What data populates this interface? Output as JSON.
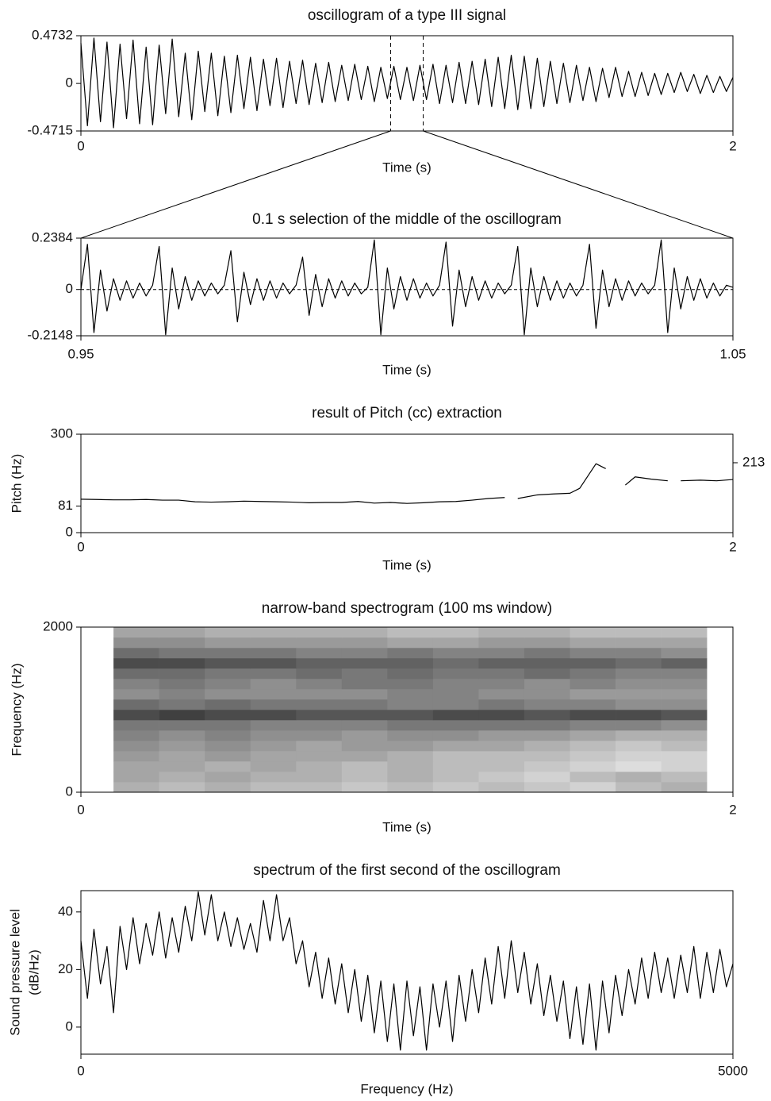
{
  "chart_data": [
    {
      "type": "line",
      "title": "oscillogram of a type III signal",
      "xlabel": "Time (s)",
      "color": "#000000",
      "xlim": [
        0,
        2
      ],
      "xticks": [
        0,
        2
      ],
      "ylim": [
        -0.4715,
        0.4732
      ],
      "yticks": [
        -0.4715,
        0,
        0.4732
      ],
      "markers": [
        0.95,
        1.05
      ],
      "x": [
        0,
        0.02,
        0.04,
        0.06,
        0.08,
        0.1,
        0.12,
        0.14,
        0.16,
        0.18,
        0.2,
        0.22,
        0.24,
        0.26,
        0.28,
        0.3,
        0.32,
        0.34,
        0.36,
        0.38,
        0.4,
        0.42,
        0.44,
        0.46,
        0.48,
        0.5,
        0.52,
        0.54,
        0.56,
        0.58,
        0.6,
        0.62,
        0.64,
        0.66,
        0.68,
        0.7,
        0.72,
        0.74,
        0.76,
        0.78,
        0.8,
        0.82,
        0.84,
        0.86,
        0.88,
        0.9,
        0.92,
        0.94,
        0.96,
        0.98,
        1,
        1.02,
        1.04,
        1.06,
        1.08,
        1.1,
        1.12,
        1.14,
        1.16,
        1.18,
        1.2,
        1.22,
        1.24,
        1.26,
        1.28,
        1.3,
        1.32,
        1.34,
        1.36,
        1.38,
        1.4,
        1.42,
        1.44,
        1.46,
        1.48,
        1.5,
        1.52,
        1.54,
        1.56,
        1.58,
        1.6,
        1.62,
        1.64,
        1.66,
        1.68,
        1.7,
        1.72,
        1.74,
        1.76,
        1.78,
        1.8,
        1.82,
        1.84,
        1.86,
        1.88,
        1.9,
        1.92,
        1.94,
        1.96,
        1.98,
        2
      ],
      "values": [
        0.4,
        -0.42,
        0.45,
        -0.38,
        0.41,
        -0.44,
        0.39,
        -0.35,
        0.43,
        -0.4,
        0.36,
        -0.41,
        0.38,
        -0.3,
        0.44,
        -0.33,
        0.3,
        -0.36,
        0.32,
        -0.28,
        0.3,
        -0.32,
        0.27,
        -0.29,
        0.28,
        -0.25,
        0.26,
        -0.27,
        0.24,
        -0.22,
        0.25,
        -0.24,
        0.22,
        -0.2,
        0.23,
        -0.21,
        0.2,
        -0.19,
        0.21,
        -0.18,
        0.18,
        -0.17,
        0.19,
        -0.16,
        0.17,
        -0.18,
        0.16,
        -0.15,
        0.17,
        -0.16,
        0.16,
        -0.17,
        0.18,
        -0.16,
        0.19,
        -0.2,
        0.18,
        -0.19,
        0.21,
        -0.2,
        0.22,
        -0.21,
        0.24,
        -0.23,
        0.26,
        -0.25,
        0.28,
        -0.26,
        0.27,
        -0.25,
        0.25,
        -0.23,
        0.22,
        -0.2,
        0.2,
        -0.19,
        0.18,
        -0.17,
        0.16,
        -0.18,
        0.15,
        -0.14,
        0.16,
        -0.13,
        0.12,
        -0.13,
        0.11,
        -0.12,
        0.1,
        -0.11,
        0.1,
        -0.09,
        0.11,
        -0.08,
        0.09,
        -0.1,
        0.08,
        -0.09,
        0.07,
        -0.08,
        0.06
      ]
    },
    {
      "type": "line",
      "title": "0.1 s selection of the middle of the oscillogram",
      "xlabel": "Time (s)",
      "color": "#000000",
      "xlim": [
        0.95,
        1.05
      ],
      "xticks": [
        {
          "value": 0.95,
          "label": "0.95"
        },
        {
          "value": 1.05,
          "label": "1.05"
        }
      ],
      "ylim": [
        -0.2148,
        0.2384
      ],
      "yticks": [
        -0.2148,
        0,
        0.2384
      ],
      "zero_line": true,
      "x": [
        0.95,
        0.951,
        0.952,
        0.953,
        0.954,
        0.955,
        0.956,
        0.957,
        0.958,
        0.959,
        0.96,
        0.961,
        0.962,
        0.963,
        0.964,
        0.965,
        0.966,
        0.967,
        0.968,
        0.969,
        0.97,
        0.971,
        0.972,
        0.973,
        0.974,
        0.975,
        0.976,
        0.977,
        0.978,
        0.979,
        0.98,
        0.981,
        0.982,
        0.983,
        0.984,
        0.985,
        0.986,
        0.987,
        0.988,
        0.989,
        0.99,
        0.991,
        0.992,
        0.993,
        0.994,
        0.995,
        0.996,
        0.997,
        0.998,
        0.999,
        1,
        1.001,
        1.002,
        1.003,
        1.004,
        1.005,
        1.006,
        1.007,
        1.008,
        1.009,
        1.01,
        1.011,
        1.012,
        1.013,
        1.014,
        1.015,
        1.016,
        1.017,
        1.018,
        1.019,
        1.02,
        1.021,
        1.022,
        1.023,
        1.024,
        1.025,
        1.026,
        1.027,
        1.028,
        1.029,
        1.03,
        1.031,
        1.032,
        1.033,
        1.034,
        1.035,
        1.036,
        1.037,
        1.038,
        1.039,
        1.04,
        1.041,
        1.042,
        1.043,
        1.044,
        1.045,
        1.046,
        1.047,
        1.048,
        1.049,
        1.05
      ],
      "values": [
        0,
        0.21,
        -0.2,
        0.09,
        -0.1,
        0.05,
        -0.05,
        0.04,
        -0.04,
        0.03,
        -0.03,
        0.02,
        0.2,
        -0.21,
        0.1,
        -0.09,
        0.06,
        -0.05,
        0.04,
        -0.03,
        0.03,
        -0.02,
        0.02,
        0.18,
        -0.15,
        0.08,
        -0.07,
        0.05,
        -0.05,
        0.04,
        -0.04,
        0.03,
        -0.02,
        0.02,
        0.15,
        -0.12,
        0.07,
        -0.08,
        0.05,
        -0.04,
        0.04,
        -0.03,
        0.03,
        -0.02,
        0.01,
        0.23,
        -0.21,
        0.1,
        -0.09,
        0.06,
        -0.05,
        0.05,
        -0.04,
        0.03,
        -0.03,
        0.02,
        0.22,
        -0.17,
        0.09,
        -0.08,
        0.06,
        -0.05,
        0.04,
        -0.04,
        0.03,
        -0.02,
        0.02,
        0.2,
        -0.21,
        0.1,
        -0.08,
        0.06,
        -0.05,
        0.04,
        -0.04,
        0.03,
        -0.03,
        0.02,
        0.21,
        -0.18,
        0.09,
        -0.08,
        0.05,
        -0.05,
        0.04,
        -0.03,
        0.03,
        -0.02,
        0.02,
        0.23,
        -0.2,
        0.1,
        -0.09,
        0.06,
        -0.05,
        0.05,
        -0.04,
        0.03,
        -0.03,
        0.02,
        0.01
      ]
    },
    {
      "type": "line",
      "title": "result of Pitch (cc) extraction",
      "xlabel": "Time (s)",
      "ylabel": "Pitch (Hz)",
      "color": "#000000",
      "xlim": [
        0,
        2
      ],
      "xticks": [
        0,
        2
      ],
      "ylim": [
        0,
        300
      ],
      "yticks": [
        0,
        81,
        300
      ],
      "right_ticks": [
        213
      ],
      "x": [
        0,
        0.05,
        0.1,
        0.15,
        0.2,
        0.25,
        0.3,
        0.35,
        0.4,
        0.45,
        0.5,
        0.55,
        0.6,
        0.65,
        0.7,
        0.75,
        0.8,
        0.85,
        0.9,
        0.95,
        1,
        1.05,
        1.1,
        1.15,
        1.2,
        1.25,
        1.3,
        1.32,
        1.34,
        1.4,
        1.45,
        1.5,
        1.53,
        1.58,
        1.61,
        1.64,
        1.67,
        1.7,
        1.75,
        1.8,
        1.82,
        1.84,
        1.9,
        1.95,
        2
      ],
      "values": [
        102,
        101,
        100,
        100,
        101,
        99,
        99,
        94,
        93,
        94,
        96,
        95,
        94,
        93,
        91,
        92,
        92,
        95,
        90,
        92,
        89,
        91,
        94,
        95,
        99,
        104,
        107,
        null,
        104,
        115,
        118,
        120,
        135,
        210,
        195,
        null,
        145,
        170,
        163,
        158,
        null,
        158,
        160,
        158,
        162
      ]
    },
    {
      "type": "heatmap",
      "title": "narrow-band spectrogram (100 ms window)",
      "xlabel": "Time (s)",
      "ylabel": "Frequency (Hz)",
      "xlim": [
        0,
        2
      ],
      "xticks": [
        0,
        2
      ],
      "ylim": [
        0,
        2000
      ],
      "yticks": [
        0,
        2000
      ],
      "xbins": [
        0.1,
        0.24,
        0.38,
        0.52,
        0.66,
        0.8,
        0.94,
        1.08,
        1.22,
        1.36,
        1.5,
        1.64,
        1.78,
        1.92
      ],
      "ybins": [
        0,
        125,
        250,
        375,
        500,
        625,
        750,
        875,
        1000,
        1125,
        1250,
        1375,
        1500,
        1625,
        1750,
        1875,
        2000
      ],
      "values": [
        [
          0.35,
          0.3,
          0.35,
          0.3,
          0.3,
          0.25,
          0.3,
          0.25,
          0.3,
          0.25,
          0.2,
          0.3,
          0.35
        ],
        [
          0.4,
          0.35,
          0.4,
          0.35,
          0.35,
          0.3,
          0.35,
          0.3,
          0.25,
          0.2,
          0.3,
          0.35,
          0.3
        ],
        [
          0.4,
          0.4,
          0.35,
          0.4,
          0.35,
          0.3,
          0.35,
          0.3,
          0.3,
          0.25,
          0.2,
          0.15,
          0.2
        ],
        [
          0.45,
          0.4,
          0.45,
          0.4,
          0.4,
          0.4,
          0.35,
          0.3,
          0.3,
          0.3,
          0.25,
          0.2,
          0.2
        ],
        [
          0.5,
          0.45,
          0.5,
          0.45,
          0.4,
          0.45,
          0.45,
          0.4,
          0.4,
          0.35,
          0.3,
          0.25,
          0.3
        ],
        [
          0.55,
          0.5,
          0.55,
          0.5,
          0.5,
          0.45,
          0.5,
          0.5,
          0.45,
          0.45,
          0.4,
          0.35,
          0.35
        ],
        [
          0.6,
          0.6,
          0.6,
          0.55,
          0.55,
          0.55,
          0.6,
          0.6,
          0.6,
          0.6,
          0.55,
          0.55,
          0.5
        ],
        [
          0.8,
          0.85,
          0.8,
          0.8,
          0.75,
          0.75,
          0.75,
          0.8,
          0.8,
          0.75,
          0.8,
          0.8,
          0.75
        ],
        [
          0.65,
          0.6,
          0.65,
          0.6,
          0.6,
          0.6,
          0.55,
          0.55,
          0.6,
          0.55,
          0.55,
          0.5,
          0.5
        ],
        [
          0.5,
          0.55,
          0.5,
          0.5,
          0.5,
          0.5,
          0.55,
          0.55,
          0.5,
          0.5,
          0.45,
          0.45,
          0.45
        ],
        [
          0.55,
          0.6,
          0.55,
          0.5,
          0.55,
          0.6,
          0.6,
          0.55,
          0.55,
          0.5,
          0.55,
          0.5,
          0.5
        ],
        [
          0.65,
          0.65,
          0.6,
          0.6,
          0.65,
          0.6,
          0.65,
          0.6,
          0.6,
          0.65,
          0.6,
          0.55,
          0.55
        ],
        [
          0.8,
          0.8,
          0.75,
          0.75,
          0.7,
          0.7,
          0.7,
          0.65,
          0.7,
          0.7,
          0.7,
          0.65,
          0.7
        ],
        [
          0.65,
          0.6,
          0.6,
          0.6,
          0.55,
          0.55,
          0.6,
          0.55,
          0.55,
          0.6,
          0.55,
          0.55,
          0.5
        ],
        [
          0.5,
          0.5,
          0.45,
          0.45,
          0.45,
          0.45,
          0.4,
          0.4,
          0.45,
          0.45,
          0.4,
          0.4,
          0.4
        ],
        [
          0.4,
          0.4,
          0.35,
          0.35,
          0.35,
          0.35,
          0.3,
          0.3,
          0.35,
          0.35,
          0.3,
          0.3,
          0.3
        ]
      ]
    },
    {
      "type": "line",
      "title": "spectrum of the first second of the oscillogram",
      "xlabel": "Frequency (Hz)",
      "ylabel": [
        "Sound pressure level",
        "(dB/Hz)"
      ],
      "color": "#000000",
      "xlim": [
        0,
        5000
      ],
      "xticks": [
        0,
        5000
      ],
      "ylim": [
        -9.4,
        47.4
      ],
      "yticks": [
        0,
        20,
        40
      ],
      "x": [
        0,
        50,
        100,
        150,
        200,
        250,
        300,
        350,
        400,
        450,
        500,
        550,
        600,
        650,
        700,
        750,
        800,
        850,
        900,
        950,
        1000,
        1050,
        1100,
        1150,
        1200,
        1250,
        1300,
        1350,
        1400,
        1450,
        1500,
        1550,
        1600,
        1650,
        1700,
        1750,
        1800,
        1850,
        1900,
        1950,
        2000,
        2050,
        2100,
        2150,
        2200,
        2250,
        2300,
        2350,
        2400,
        2450,
        2500,
        2550,
        2600,
        2650,
        2700,
        2750,
        2800,
        2850,
        2900,
        2950,
        3000,
        3050,
        3100,
        3150,
        3200,
        3250,
        3300,
        3350,
        3400,
        3450,
        3500,
        3550,
        3600,
        3650,
        3700,
        3750,
        3800,
        3850,
        3900,
        3950,
        4000,
        4050,
        4100,
        4150,
        4200,
        4250,
        4300,
        4350,
        4400,
        4450,
        4500,
        4550,
        4600,
        4650,
        4700,
        4750,
        4800,
        4850,
        4900,
        4950,
        5000
      ],
      "values": [
        30,
        10,
        34,
        15,
        28,
        5,
        35,
        20,
        38,
        22,
        36,
        25,
        40,
        24,
        38,
        26,
        42,
        30,
        47,
        32,
        46,
        30,
        40,
        28,
        38,
        27,
        36,
        26,
        44,
        30,
        46,
        30,
        38,
        22,
        30,
        14,
        26,
        10,
        24,
        8,
        22,
        5,
        20,
        2,
        18,
        -2,
        16,
        -5,
        15,
        -8,
        16,
        -3,
        14,
        -8,
        15,
        0,
        16,
        -5,
        18,
        2,
        20,
        5,
        24,
        8,
        28,
        10,
        30,
        12,
        26,
        8,
        22,
        4,
        18,
        2,
        16,
        -4,
        14,
        -6,
        15,
        -8,
        16,
        -2,
        18,
        4,
        20,
        8,
        24,
        10,
        26,
        12,
        24,
        10,
        25,
        12,
        28,
        10,
        26,
        12,
        27,
        14,
        22
      ]
    }
  ]
}
